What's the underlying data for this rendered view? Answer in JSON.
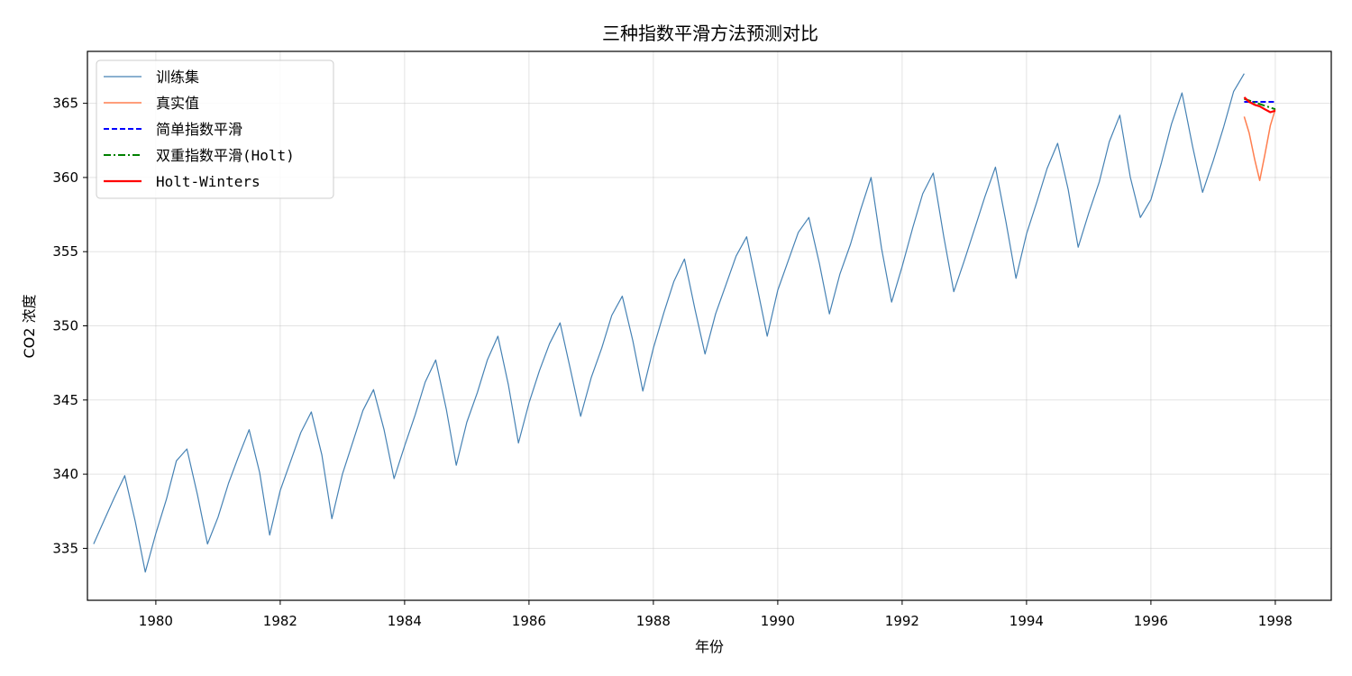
{
  "chart_data": {
    "type": "line",
    "title": "三种指数平滑方法预测对比",
    "xlabel": "年份",
    "ylabel": "CO2 浓度",
    "xlim": [
      1978.9,
      1998.9
    ],
    "ylim": [
      331.5,
      368.5
    ],
    "x_ticks": [
      1980,
      1982,
      1984,
      1986,
      1988,
      1990,
      1992,
      1994,
      1996,
      1998
    ],
    "y_ticks": [
      335,
      340,
      345,
      350,
      355,
      360,
      365
    ],
    "grid": true,
    "legend_position": "top-left",
    "series": [
      {
        "name": "训练集",
        "color": "#4682b4",
        "style": "solid",
        "x": [
          1979.0,
          1979.17,
          1979.33,
          1979.5,
          1979.67,
          1979.83,
          1980.0,
          1980.17,
          1980.33,
          1980.5,
          1980.67,
          1980.83,
          1981.0,
          1981.17,
          1981.33,
          1981.5,
          1981.67,
          1981.83,
          1982.0,
          1982.17,
          1982.33,
          1982.5,
          1982.67,
          1982.83,
          1983.0,
          1983.17,
          1983.33,
          1983.5,
          1983.67,
          1983.83,
          1984.0,
          1984.17,
          1984.33,
          1984.5,
          1984.67,
          1984.83,
          1985.0,
          1985.17,
          1985.33,
          1985.5,
          1985.67,
          1985.83,
          1986.0,
          1986.17,
          1986.33,
          1986.5,
          1986.67,
          1986.83,
          1987.0,
          1987.17,
          1987.33,
          1987.5,
          1987.67,
          1987.83,
          1988.0,
          1988.17,
          1988.33,
          1988.5,
          1988.67,
          1988.83,
          1989.0,
          1989.17,
          1989.33,
          1989.5,
          1989.67,
          1989.83,
          1990.0,
          1990.17,
          1990.33,
          1990.5,
          1990.67,
          1990.83,
          1991.0,
          1991.17,
          1991.33,
          1991.5,
          1991.67,
          1991.83,
          1992.0,
          1992.17,
          1992.33,
          1992.5,
          1992.67,
          1992.83,
          1993.0,
          1993.17,
          1993.33,
          1993.5,
          1993.67,
          1993.83,
          1994.0,
          1994.17,
          1994.33,
          1994.5,
          1994.67,
          1994.83,
          1995.0,
          1995.17,
          1995.33,
          1995.5,
          1995.67,
          1995.83,
          1996.0,
          1996.17,
          1996.33,
          1996.5,
          1996.67,
          1996.83,
          1997.0,
          1997.17,
          1997.33,
          1997.5
        ],
        "y": [
          335.3,
          336.9,
          338.4,
          339.9,
          336.8,
          333.4,
          336.0,
          338.3,
          340.9,
          341.7,
          338.6,
          335.3,
          337.1,
          339.4,
          341.2,
          343.0,
          340.1,
          335.9,
          338.9,
          340.9,
          342.8,
          344.2,
          341.3,
          337.0,
          340.0,
          342.2,
          344.3,
          345.7,
          343.0,
          339.7,
          341.9,
          344.0,
          346.2,
          347.7,
          344.4,
          340.6,
          343.5,
          345.5,
          347.7,
          349.3,
          346.0,
          342.1,
          344.8,
          347.0,
          348.8,
          350.2,
          347.0,
          343.9,
          346.5,
          348.5,
          350.7,
          352.0,
          349.0,
          345.6,
          348.5,
          350.9,
          353.0,
          354.5,
          351.1,
          348.1,
          350.8,
          352.8,
          354.7,
          356.0,
          352.6,
          349.3,
          352.4,
          354.4,
          356.3,
          357.3,
          354.2,
          350.8,
          353.5,
          355.5,
          357.8,
          360.0,
          355.2,
          351.6,
          354.0,
          356.6,
          358.9,
          360.3,
          356.0,
          352.3,
          354.4,
          356.6,
          358.7,
          360.7,
          357.0,
          353.2,
          356.2,
          358.4,
          360.6,
          362.3,
          359.2,
          355.3,
          357.6,
          359.7,
          362.4,
          364.2,
          360.0,
          357.3,
          358.5,
          361.0,
          363.6,
          365.7,
          362.1,
          359.0,
          361.1,
          363.4,
          365.8,
          367.0
        ]
      },
      {
        "name": "真实值",
        "color": "#ff7f50",
        "style": "solid",
        "x": [
          1997.5,
          1997.58,
          1997.67,
          1997.75,
          1997.83,
          1997.92,
          1998.0
        ],
        "y": [
          364.1,
          363.0,
          361.2,
          359.8,
          361.5,
          363.5,
          364.6
        ]
      },
      {
        "name": "简单指数平滑",
        "color": "#0000ff",
        "style": "dashed",
        "x": [
          1997.5,
          1998.0
        ],
        "y": [
          365.1,
          365.1
        ]
      },
      {
        "name": "双重指数平滑(Holt)",
        "color": "#008000",
        "style": "dashdot",
        "x": [
          1997.5,
          1998.0
        ],
        "y": [
          365.3,
          364.6
        ]
      },
      {
        "name": "Holt-Winters",
        "color": "#ff0000",
        "style": "solid",
        "x": [
          1997.5,
          1997.58,
          1997.67,
          1997.75,
          1997.83,
          1997.92,
          1998.0
        ],
        "y": [
          365.4,
          365.1,
          364.9,
          364.8,
          364.6,
          364.4,
          364.5
        ]
      }
    ]
  }
}
